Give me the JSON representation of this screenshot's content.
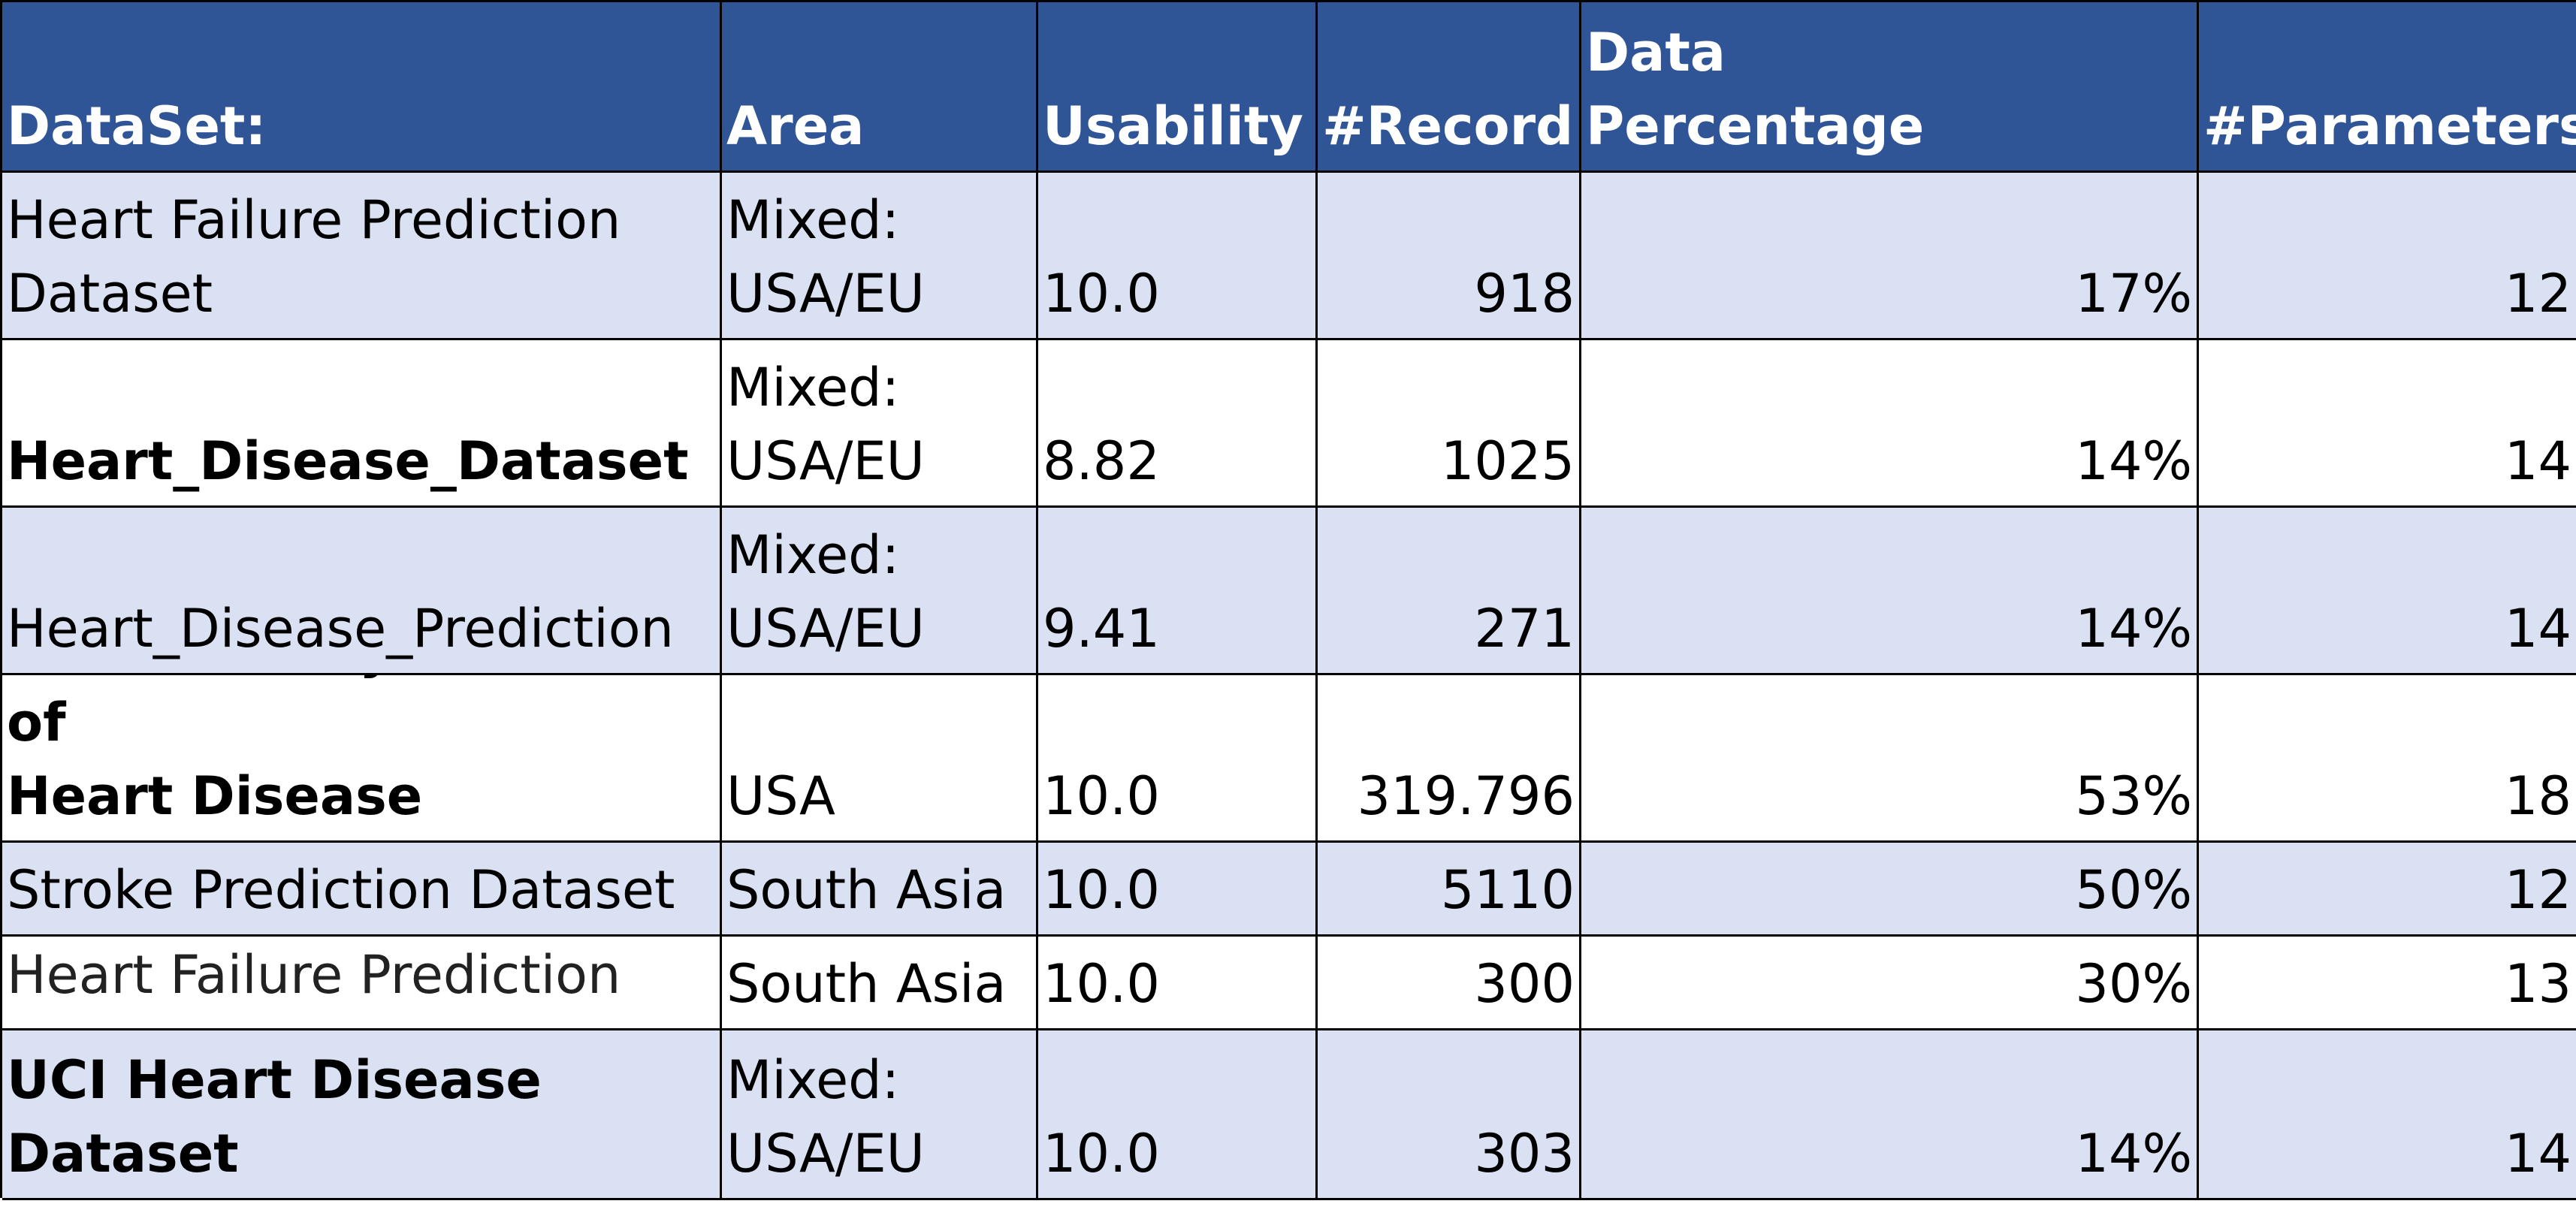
{
  "table": {
    "headers": [
      "DataSet:",
      "Area",
      "Usability",
      "#Record",
      "Personal/Clinical Data\nPercentage",
      "#Parameters"
    ],
    "rows": [
      {
        "dataset": "Heart Failure Prediction\nDataset",
        "area": "Mixed:\nUSA/EU",
        "usability": "10.0",
        "records": "918",
        "percentage": "17%",
        "parameters": "12"
      },
      {
        "dataset": "Heart_Disease_Dataset",
        "area": "Mixed:\nUSA/EU",
        "usability": "8.82",
        "records": "1025",
        "percentage": "14%",
        "parameters": "14"
      },
      {
        "dataset": "Heart_Disease_Prediction",
        "area": "Mixed:\nUSA/EU",
        "usability": "9.41",
        "records": "271",
        "percentage": "14%",
        "parameters": "14"
      },
      {
        "dataset": "Personal Key Indicators of\nHeart Disease",
        "area": "USA",
        "usability": "10.0",
        "records": "319.796",
        "percentage": "53%",
        "parameters": "18"
      },
      {
        "dataset": "Stroke Prediction Dataset",
        "area": "South Asia",
        "usability": "10.0",
        "records": "5110",
        "percentage": "50%",
        "parameters": "12"
      },
      {
        "dataset": "Heart Failure Prediction",
        "area": "South Asia",
        "usability": "10.0",
        "records": "300",
        "percentage": "30%",
        "parameters": "13"
      },
      {
        "dataset": "UCI Heart Disease Dataset",
        "area": "Mixed:\nUSA/EU",
        "usability": "10.0",
        "records": "303",
        "percentage": "14%",
        "parameters": "14"
      }
    ]
  },
  "colors": {
    "header_bg": "#2f5597",
    "header_text": "#ffffff",
    "band_bg": "#dae1f3",
    "plain_bg": "#ffffff",
    "grid_line": "#000000"
  }
}
